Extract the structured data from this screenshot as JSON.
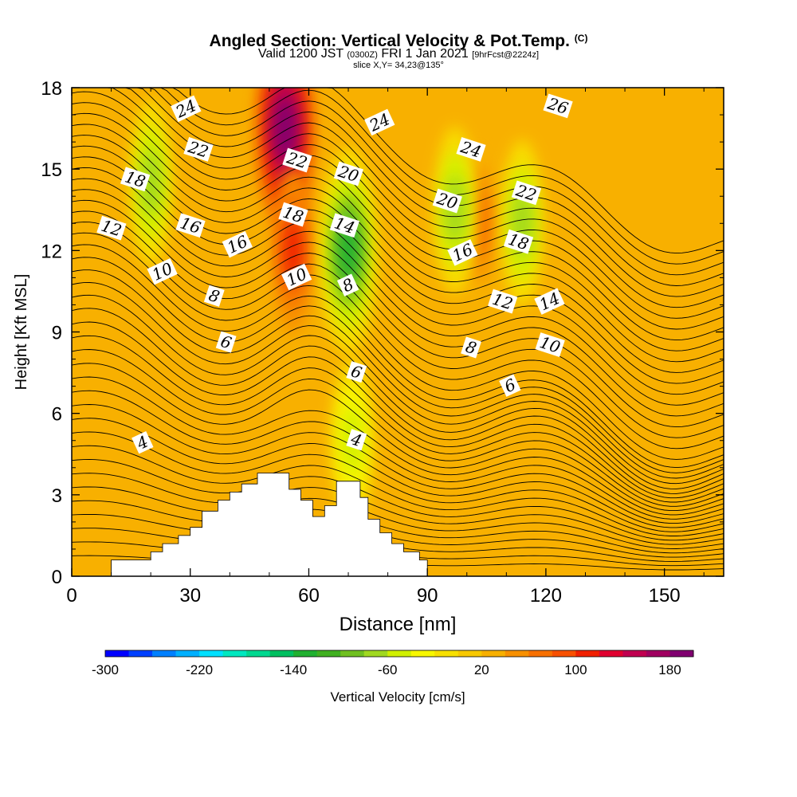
{
  "header": {
    "title": "Angled Section: Vertical Velocity & Pot.Temp.",
    "copyright": "(C)",
    "valid_prefix": "Valid 1200 JST",
    "valid_utc": "(0300Z)",
    "valid_date": "FRI 1 Jan 2021",
    "forecast": "[9hrFcst@2224z]",
    "slice": "slice X,Y= 34,23@135°"
  },
  "chart_data": {
    "type": "heatmap",
    "title": "Angled Section: Vertical Velocity & Pot.Temp.",
    "xlabel": "Distance [nm]",
    "ylabel": "Height [Kft MSL]",
    "xlim": [
      0,
      165
    ],
    "ylim": [
      0,
      18
    ],
    "x_ticks": [
      "0",
      "30",
      "60",
      "90",
      "120",
      "150"
    ],
    "x_tick_values": [
      0,
      30,
      60,
      90,
      120,
      150
    ],
    "y_ticks": [
      "0",
      "3",
      "6",
      "9",
      "12",
      "15",
      "18"
    ],
    "y_tick_values": [
      0,
      3,
      6,
      9,
      12,
      15,
      18
    ],
    "colorbar": {
      "label": "Vertical Velocity [cm/s]",
      "tick_labels": [
        "-300",
        "-220",
        "-140",
        "-60",
        "20",
        "100",
        "180"
      ],
      "tick_values": [
        -300,
        -220,
        -140,
        -60,
        20,
        100,
        180
      ],
      "min": -300,
      "max": 200,
      "colors": [
        "#0000ff",
        "#0040ff",
        "#0080ff",
        "#00b0ff",
        "#00e0ff",
        "#00e8c0",
        "#00d890",
        "#00c060",
        "#20b030",
        "#40b020",
        "#70c020",
        "#a0d820",
        "#d0f000",
        "#f8f800",
        "#f8e000",
        "#f8c800",
        "#f8b000",
        "#f89000",
        "#f87000",
        "#f85000",
        "#f02000",
        "#e00030",
        "#c00050",
        "#a00060",
        "#800070"
      ]
    },
    "terrain_profile": {
      "x": [
        10,
        17,
        20,
        23,
        27,
        30,
        33,
        37,
        40,
        43,
        47,
        52,
        55,
        58,
        61,
        64,
        67,
        70,
        73,
        75,
        78,
        81,
        84,
        88
      ],
      "height": [
        0.6,
        0.6,
        0.9,
        1.2,
        1.5,
        1.8,
        2.4,
        2.8,
        3.1,
        3.4,
        3.8,
        3.8,
        3.2,
        2.8,
        2.2,
        2.6,
        3.5,
        3.5,
        2.9,
        2.1,
        1.6,
        1.2,
        0.9,
        0.6
      ]
    },
    "updraft_cores": [
      {
        "x": 54,
        "y": 16.5,
        "value": 180
      },
      {
        "x": 56,
        "y": 12.0,
        "value": 100
      },
      {
        "x": 103,
        "y": 13.0,
        "value": 60
      }
    ],
    "downdraft_cores": [
      {
        "x": 70,
        "y": 12.0,
        "value": -140
      },
      {
        "x": 20,
        "y": 14.5,
        "value": -80
      },
      {
        "x": 97,
        "y": 13.5,
        "value": -80
      },
      {
        "x": 114,
        "y": 13.0,
        "value": -80
      },
      {
        "x": 71,
        "y": 5.0,
        "value": -60
      }
    ],
    "theta_contours": [
      {
        "label": "4",
        "label_x": 18,
        "label_y": 4.9
      },
      {
        "label": "6",
        "label_x": 39,
        "label_y": 8.6
      },
      {
        "label": "8",
        "label_x": 36,
        "label_y": 10.3
      },
      {
        "label": "10",
        "label_x": 23,
        "label_y": 11.2
      },
      {
        "label": "12",
        "label_x": 10,
        "label_y": 12.8
      },
      {
        "label": "16",
        "label_x": 30,
        "label_y": 12.9
      },
      {
        "label": "16",
        "label_x": 42,
        "label_y": 12.2
      },
      {
        "label": "18",
        "label_x": 16,
        "label_y": 14.6
      },
      {
        "label": "22",
        "label_x": 32,
        "label_y": 15.7
      },
      {
        "label": "24",
        "label_x": 29,
        "label_y": 17.2
      },
      {
        "label": "22",
        "label_x": 57,
        "label_y": 15.3
      },
      {
        "label": "18",
        "label_x": 56,
        "label_y": 13.3
      },
      {
        "label": "10",
        "label_x": 57,
        "label_y": 11.0
      },
      {
        "label": "20",
        "label_x": 70,
        "label_y": 14.8
      },
      {
        "label": "14",
        "label_x": 69,
        "label_y": 12.9
      },
      {
        "label": "8",
        "label_x": 70,
        "label_y": 10.7
      },
      {
        "label": "6",
        "label_x": 72,
        "label_y": 7.5
      },
      {
        "label": "4",
        "label_x": 72,
        "label_y": 5.0
      },
      {
        "label": "24",
        "label_x": 78,
        "label_y": 16.7
      },
      {
        "label": "24",
        "label_x": 101,
        "label_y": 15.7
      },
      {
        "label": "20",
        "label_x": 95,
        "label_y": 13.8
      },
      {
        "label": "16",
        "label_x": 99,
        "label_y": 11.9
      },
      {
        "label": "8",
        "label_x": 101,
        "label_y": 8.4
      },
      {
        "label": "12",
        "label_x": 109,
        "label_y": 10.1
      },
      {
        "label": "6",
        "label_x": 111,
        "label_y": 7.0
      },
      {
        "label": "22",
        "label_x": 115,
        "label_y": 14.1
      },
      {
        "label": "18",
        "label_x": 113,
        "label_y": 12.3
      },
      {
        "label": "14",
        "label_x": 121,
        "label_y": 10.1
      },
      {
        "label": "10",
        "label_x": 121,
        "label_y": 8.5
      },
      {
        "label": "26",
        "label_x": 123,
        "label_y": 17.3
      }
    ]
  }
}
